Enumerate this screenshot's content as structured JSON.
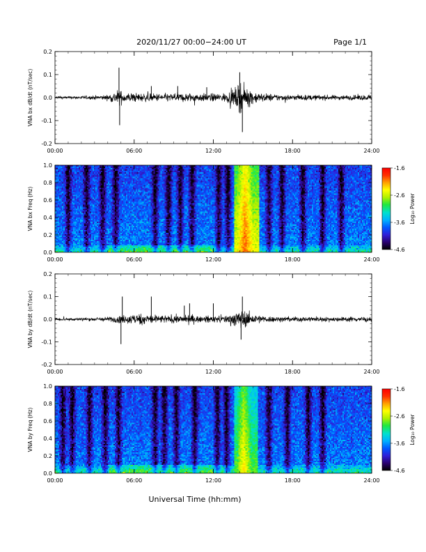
{
  "header": {
    "title": "2020/11/27  00:00−24:00 UT",
    "page": "Page 1/1"
  },
  "x_axis": {
    "label": "Universal Time (hh:mm)",
    "ticks": [
      "00:00",
      "06:00",
      "12:00",
      "18:00",
      "24:00"
    ]
  },
  "colorbar": {
    "label": "Log₁₀ Power",
    "ticks": [
      "-1.6",
      "-2.6",
      "-3.6",
      "-4.6"
    ],
    "range": [
      -4.6,
      -1.6
    ],
    "colormap": [
      "#000000",
      "#2a0070",
      "#3020d8",
      "#0058ff",
      "#00b0ff",
      "#00e0d0",
      "#20e840",
      "#b0f000",
      "#ffff00",
      "#ffa000",
      "#ff3000",
      "#ff0000"
    ]
  },
  "chart_data": [
    {
      "type": "line",
      "ylabel": "VNA bx dB/dt (nT/sec)",
      "xlim": [
        0,
        24
      ],
      "ylim": [
        -0.2,
        0.2
      ],
      "yticks": [
        "0.2",
        "0.1",
        "0.0",
        "-0.1",
        "-0.2"
      ],
      "line_color": "#000000",
      "envelope": {
        "x": [
          0,
          1,
          2,
          3,
          4,
          4.8,
          5.2,
          6,
          7,
          8,
          9,
          10,
          11,
          12,
          13,
          13.5,
          14,
          14.5,
          15,
          15.5,
          16,
          17,
          18,
          19,
          20,
          21,
          22,
          23,
          24
        ],
        "amplitude": [
          0.01,
          0.01,
          0.012,
          0.015,
          0.02,
          0.06,
          0.04,
          0.035,
          0.03,
          0.03,
          0.03,
          0.035,
          0.03,
          0.03,
          0.035,
          0.06,
          0.1,
          0.08,
          0.05,
          0.035,
          0.03,
          0.025,
          0.02,
          0.02,
          0.02,
          0.018,
          0.018,
          0.02,
          0.02
        ]
      },
      "spikes": [
        {
          "x": 4.85,
          "y": 0.13
        },
        {
          "x": 4.9,
          "y": -0.12
        },
        {
          "x": 7.3,
          "y": 0.05
        },
        {
          "x": 9.3,
          "y": 0.05
        },
        {
          "x": 11.5,
          "y": 0.045
        },
        {
          "x": 14.2,
          "y": -0.15
        },
        {
          "x": 14.0,
          "y": 0.11
        }
      ]
    },
    {
      "type": "heatmap",
      "ylabel": "VNA bx Freq (Hz)",
      "xlim": [
        0,
        24
      ],
      "ylim": [
        0,
        1.0
      ],
      "yticks": [
        "1.0",
        "0.8",
        "0.6",
        "0.4",
        "0.2",
        "0.0"
      ],
      "zlim": [
        -4.6,
        -1.6
      ],
      "zlabel": "Log₁₀ Power",
      "bright_band": {
        "x_start": 13.6,
        "x_end": 15.5,
        "peak_x": 14.4,
        "peak_value": -1.8
      },
      "quiet_columns": [
        1.0,
        2.4,
        3.6,
        4.6,
        7.6,
        8.6,
        9.5,
        10.4,
        12.4,
        13.1,
        16.2,
        17.2,
        18.8,
        20.3,
        21.7
      ],
      "low_frequency_enhancement": {
        "y_max": 0.08,
        "x_start": 4.0,
        "x_end": 12.0
      }
    },
    {
      "type": "line",
      "ylabel": "VNA by dB/dt (nT/sec)",
      "xlim": [
        0,
        24
      ],
      "ylim": [
        -0.2,
        0.2
      ],
      "yticks": [
        "0.2",
        "0.1",
        "0.0",
        "-0.1",
        "-0.2"
      ],
      "line_color": "#000000",
      "envelope": {
        "x": [
          0,
          1,
          2,
          3,
          4,
          5,
          6,
          6.5,
          7,
          8,
          9,
          10,
          11,
          12,
          13,
          13.5,
          14,
          14.5,
          15,
          15.5,
          16,
          17,
          18,
          19,
          20,
          21,
          22,
          23,
          24
        ],
        "amplitude": [
          0.012,
          0.012,
          0.012,
          0.014,
          0.018,
          0.03,
          0.04,
          0.045,
          0.04,
          0.03,
          0.03,
          0.03,
          0.025,
          0.025,
          0.03,
          0.05,
          0.07,
          0.06,
          0.04,
          0.03,
          0.025,
          0.02,
          0.02,
          0.02,
          0.018,
          0.018,
          0.018,
          0.02,
          0.02
        ]
      },
      "spikes": [
        {
          "x": 5.0,
          "y": -0.11
        },
        {
          "x": 5.1,
          "y": 0.1
        },
        {
          "x": 7.3,
          "y": 0.1
        },
        {
          "x": 9.8,
          "y": 0.06
        },
        {
          "x": 10.2,
          "y": 0.07
        },
        {
          "x": 12.0,
          "y": 0.07
        },
        {
          "x": 14.2,
          "y": 0.1
        },
        {
          "x": 14.1,
          "y": -0.09
        }
      ]
    },
    {
      "type": "heatmap",
      "ylabel": "VNA by Freq (Hz)",
      "xlim": [
        0,
        24
      ],
      "ylim": [
        0,
        1.0
      ],
      "yticks": [
        "1.0",
        "0.8",
        "0.6",
        "0.4",
        "0.2",
        "0.0"
      ],
      "zlim": [
        -4.6,
        -1.6
      ],
      "zlabel": "Log₁₀ Power",
      "bright_band": {
        "x_start": 13.6,
        "x_end": 15.4,
        "peak_x": 14.3,
        "peak_value": -2.2
      },
      "quiet_columns": [
        0.6,
        1.3,
        2.6,
        3.8,
        4.8,
        7.6,
        8.3,
        9.2,
        10.6,
        12.3,
        13.0,
        16.2,
        17.6,
        19.2,
        20.3
      ],
      "low_frequency_enhancement": {
        "y_max": 0.1,
        "x_start": 4.0,
        "x_end": 13.0
      }
    }
  ]
}
